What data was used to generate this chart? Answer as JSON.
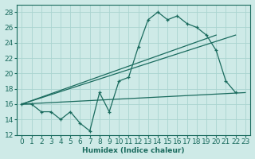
{
  "xlabel": "Humidex (Indice chaleur)",
  "background_color": "#ceeae7",
  "grid_color": "#aad4d0",
  "line_color": "#1a6b5e",
  "xlim": [
    -0.5,
    23.5
  ],
  "ylim": [
    12,
    29
  ],
  "xticks": [
    0,
    1,
    2,
    3,
    4,
    5,
    6,
    7,
    8,
    9,
    10,
    11,
    12,
    13,
    14,
    15,
    16,
    17,
    18,
    19,
    20,
    21,
    22,
    23
  ],
  "yticks": [
    12,
    14,
    16,
    18,
    20,
    22,
    24,
    26,
    28
  ],
  "series1_x": [
    0,
    1,
    2,
    3,
    4,
    5,
    6,
    7,
    8,
    9,
    10,
    11,
    12,
    13,
    14,
    15,
    16,
    17,
    18,
    19,
    20,
    21,
    22
  ],
  "series1_y": [
    16,
    16,
    15,
    15,
    14,
    15,
    13.5,
    12.5,
    17.5,
    15,
    19,
    19.5,
    23.5,
    27,
    28,
    27,
    27.5,
    26.5,
    26,
    25,
    23,
    19,
    17.5
  ],
  "line1_x": [
    0,
    20
  ],
  "line1_y": [
    16,
    25
  ],
  "line2_x": [
    0,
    22
  ],
  "line2_y": [
    16,
    25
  ],
  "line3_x": [
    0,
    23
  ],
  "line3_y": [
    16,
    17.5
  ],
  "font_size": 6.5
}
